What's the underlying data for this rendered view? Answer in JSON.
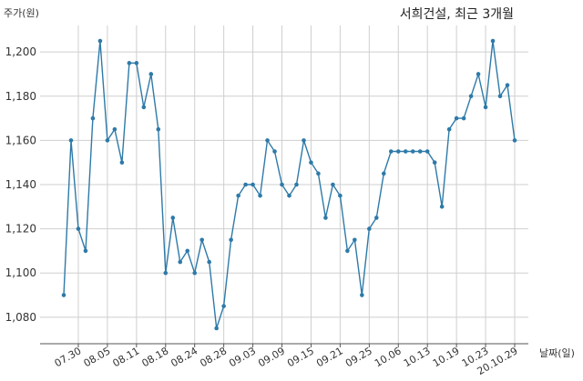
{
  "chart_data": {
    "type": "line",
    "title": "서희건설, 최근 3개월",
    "ylabel": "주가(원)",
    "xlabel": "날짜(일)",
    "ylim": [
      1068,
      1212
    ],
    "yticks": [
      1080,
      1100,
      1120,
      1140,
      1160,
      1180,
      1200
    ],
    "ytick_labels": [
      "1,080",
      "1,100",
      "1,120",
      "1,140",
      "1,160",
      "1,180",
      "1,200"
    ],
    "grid": true,
    "color": "#2e7aa8",
    "xtick_labels": [
      {
        "label": "07.30",
        "index": 2
      },
      {
        "label": "08.05",
        "index": 6
      },
      {
        "label": "08.11",
        "index": 10
      },
      {
        "label": "08.18",
        "index": 14
      },
      {
        "label": "08.24",
        "index": 18
      },
      {
        "label": "08.28",
        "index": 22
      },
      {
        "label": "09.03",
        "index": 26
      },
      {
        "label": "09.09",
        "index": 30
      },
      {
        "label": "09.15",
        "index": 34
      },
      {
        "label": "09.21",
        "index": 38
      },
      {
        "label": "09.25",
        "index": 42
      },
      {
        "label": "10.06",
        "index": 46
      },
      {
        "label": "10.13",
        "index": 50
      },
      {
        "label": "10.19",
        "index": 54
      },
      {
        "label": "10.23",
        "index": 58
      },
      {
        "label": "20.10.29",
        "index": 62
      }
    ],
    "series": [
      {
        "values": [
          1090,
          1160,
          1120,
          1110,
          1170,
          1205,
          1160,
          1165,
          1150,
          1195,
          1195,
          1175,
          1190,
          1165,
          1100,
          1125,
          1105,
          1110,
          1100,
          1115,
          1105,
          1075,
          1085,
          1115,
          1135,
          1140,
          1140,
          1135,
          1160,
          1155,
          1140,
          1135,
          1140,
          1160,
          1150,
          1145,
          1125,
          1140,
          1135,
          1110,
          1115,
          1090,
          1120,
          1125,
          1145,
          1155,
          1155,
          1155,
          1155,
          1155,
          1155,
          1150,
          1130,
          1165,
          1170,
          1170,
          1180,
          1190,
          1175,
          1205,
          1180,
          1185,
          1160
        ]
      }
    ]
  }
}
